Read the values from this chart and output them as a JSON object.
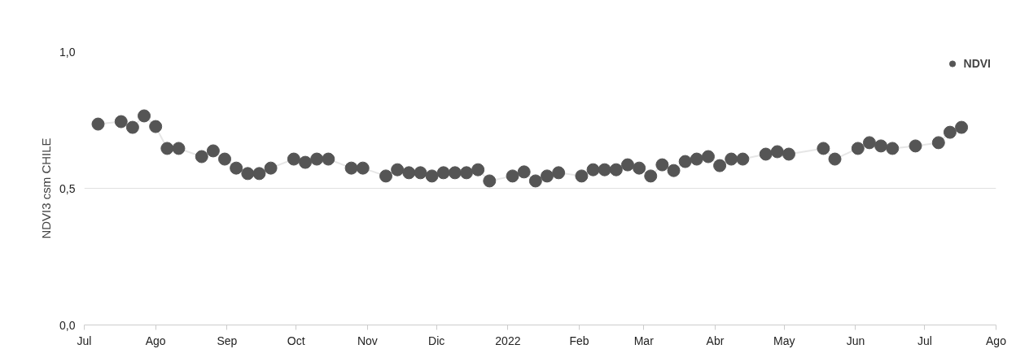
{
  "chart_data": {
    "type": "line",
    "ylabel": "NDVI3 csm CHILE",
    "marker": "circle",
    "grid": "y",
    "legend": "top right",
    "xlim": [
      "2021-07-01",
      "2022-08-01"
    ],
    "ylim": [
      0,
      1.0
    ],
    "yticks": [
      {
        "value": 0,
        "label": "0,0"
      },
      {
        "value": 0.5,
        "label": "0,5"
      },
      {
        "value": 1.0,
        "label": "1,0"
      }
    ],
    "xticks": [
      {
        "value": "2021-07-01",
        "label": "Jul"
      },
      {
        "value": "2021-08-01",
        "label": "Ago"
      },
      {
        "value": "2021-09-01",
        "label": "Sep"
      },
      {
        "value": "2021-10-01",
        "label": "Oct"
      },
      {
        "value": "2021-11-01",
        "label": "Nov"
      },
      {
        "value": "2021-12-01",
        "label": "Dic"
      },
      {
        "value": "2022-01-01",
        "label": "2022"
      },
      {
        "value": "2022-02-01",
        "label": "Feb"
      },
      {
        "value": "2022-03-01",
        "label": "Mar"
      },
      {
        "value": "2022-04-01",
        "label": "Abr"
      },
      {
        "value": "2022-05-01",
        "label": "May"
      },
      {
        "value": "2022-06-01",
        "label": "Jun"
      },
      {
        "value": "2022-07-01",
        "label": "Jul"
      },
      {
        "value": "2022-08-01",
        "label": "Ago"
      }
    ],
    "x": [
      "2021-07-07",
      "2021-07-17",
      "2021-07-22",
      "2021-07-27",
      "2021-08-01",
      "2021-08-06",
      "2021-08-11",
      "2021-08-21",
      "2021-08-26",
      "2021-08-31",
      "2021-09-05",
      "2021-09-10",
      "2021-09-15",
      "2021-09-20",
      "2021-09-30",
      "2021-10-05",
      "2021-10-10",
      "2021-10-15",
      "2021-10-25",
      "2021-10-30",
      "2021-11-09",
      "2021-11-14",
      "2021-11-19",
      "2021-11-24",
      "2021-11-29",
      "2021-12-04",
      "2021-12-09",
      "2021-12-14",
      "2021-12-19",
      "2021-12-24",
      "2022-01-03",
      "2022-01-08",
      "2022-01-13",
      "2022-01-18",
      "2022-01-23",
      "2022-02-02",
      "2022-02-07",
      "2022-02-12",
      "2022-02-17",
      "2022-02-22",
      "2022-02-27",
      "2022-03-04",
      "2022-03-09",
      "2022-03-14",
      "2022-03-19",
      "2022-03-24",
      "2022-03-29",
      "2022-04-03",
      "2022-04-08",
      "2022-04-13",
      "2022-04-23",
      "2022-04-28",
      "2022-05-03",
      "2022-05-18",
      "2022-05-23",
      "2022-06-02",
      "2022-06-07",
      "2022-06-12",
      "2022-06-17",
      "2022-06-27",
      "2022-07-07",
      "2022-07-12",
      "2022-07-17"
    ],
    "series": [
      {
        "name": "NDVI",
        "color": "#555555",
        "values": [
          0.735,
          0.744,
          0.723,
          0.765,
          0.726,
          0.646,
          0.646,
          0.616,
          0.637,
          0.607,
          0.574,
          0.554,
          0.554,
          0.574,
          0.607,
          0.595,
          0.607,
          0.607,
          0.574,
          0.574,
          0.545,
          0.568,
          0.557,
          0.557,
          0.545,
          0.557,
          0.557,
          0.557,
          0.568,
          0.527,
          0.545,
          0.56,
          0.527,
          0.545,
          0.557,
          0.545,
          0.568,
          0.568,
          0.568,
          0.586,
          0.574,
          0.545,
          0.586,
          0.565,
          0.598,
          0.607,
          0.616,
          0.583,
          0.607,
          0.607,
          0.625,
          0.634,
          0.625,
          0.646,
          0.607,
          0.646,
          0.667,
          0.655,
          0.646,
          0.655,
          0.667,
          0.705,
          0.723
        ]
      }
    ]
  }
}
